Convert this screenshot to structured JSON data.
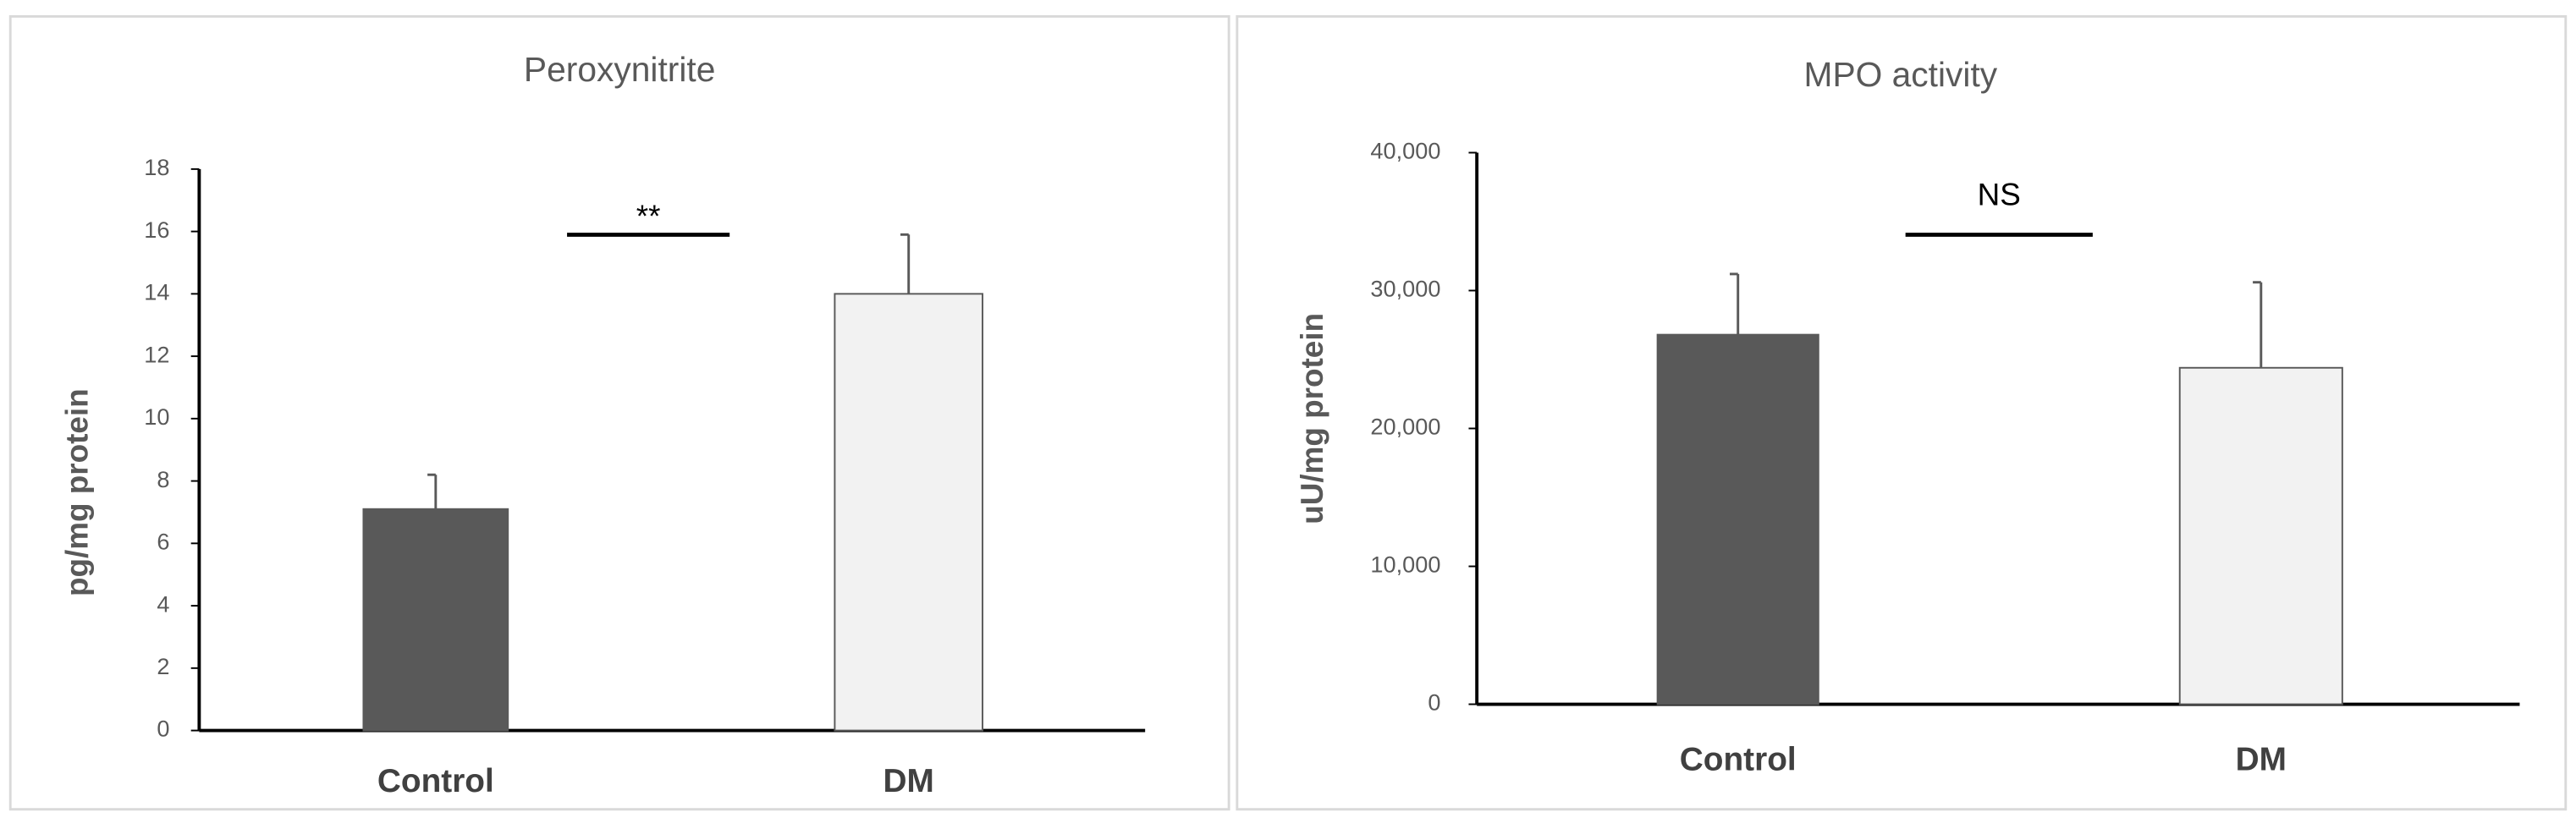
{
  "chart_data": [
    {
      "type": "bar",
      "title": "Peroxynitrite",
      "y_label": "pg/mg protein",
      "categories": [
        "Control",
        "DM"
      ],
      "values": [
        7.1,
        14.0
      ],
      "errors": [
        1.1,
        1.9
      ],
      "colors": [
        "#595959",
        "#f2f2f2"
      ],
      "annotation": "**",
      "ylim": [
        0,
        18
      ],
      "yticks": [
        0,
        2,
        4,
        6,
        8,
        10,
        12,
        14,
        16,
        18
      ]
    },
    {
      "type": "bar",
      "title": "MPO activity",
      "y_label": "uU/mg protein",
      "categories": [
        "Control",
        "DM"
      ],
      "values": [
        26800,
        24400
      ],
      "errors": [
        4400,
        6200
      ],
      "colors": [
        "#595959",
        "#f2f2f2"
      ],
      "annotation": "NS",
      "ylim": [
        0,
        40000
      ],
      "yticks": [
        0,
        {
          "value": 10000,
          "label": "10,000"
        },
        {
          "value": 20000,
          "label": "20,000"
        },
        {
          "value": 30000,
          "label": "30,000"
        },
        {
          "value": 40000,
          "label": "40,000"
        }
      ]
    }
  ]
}
